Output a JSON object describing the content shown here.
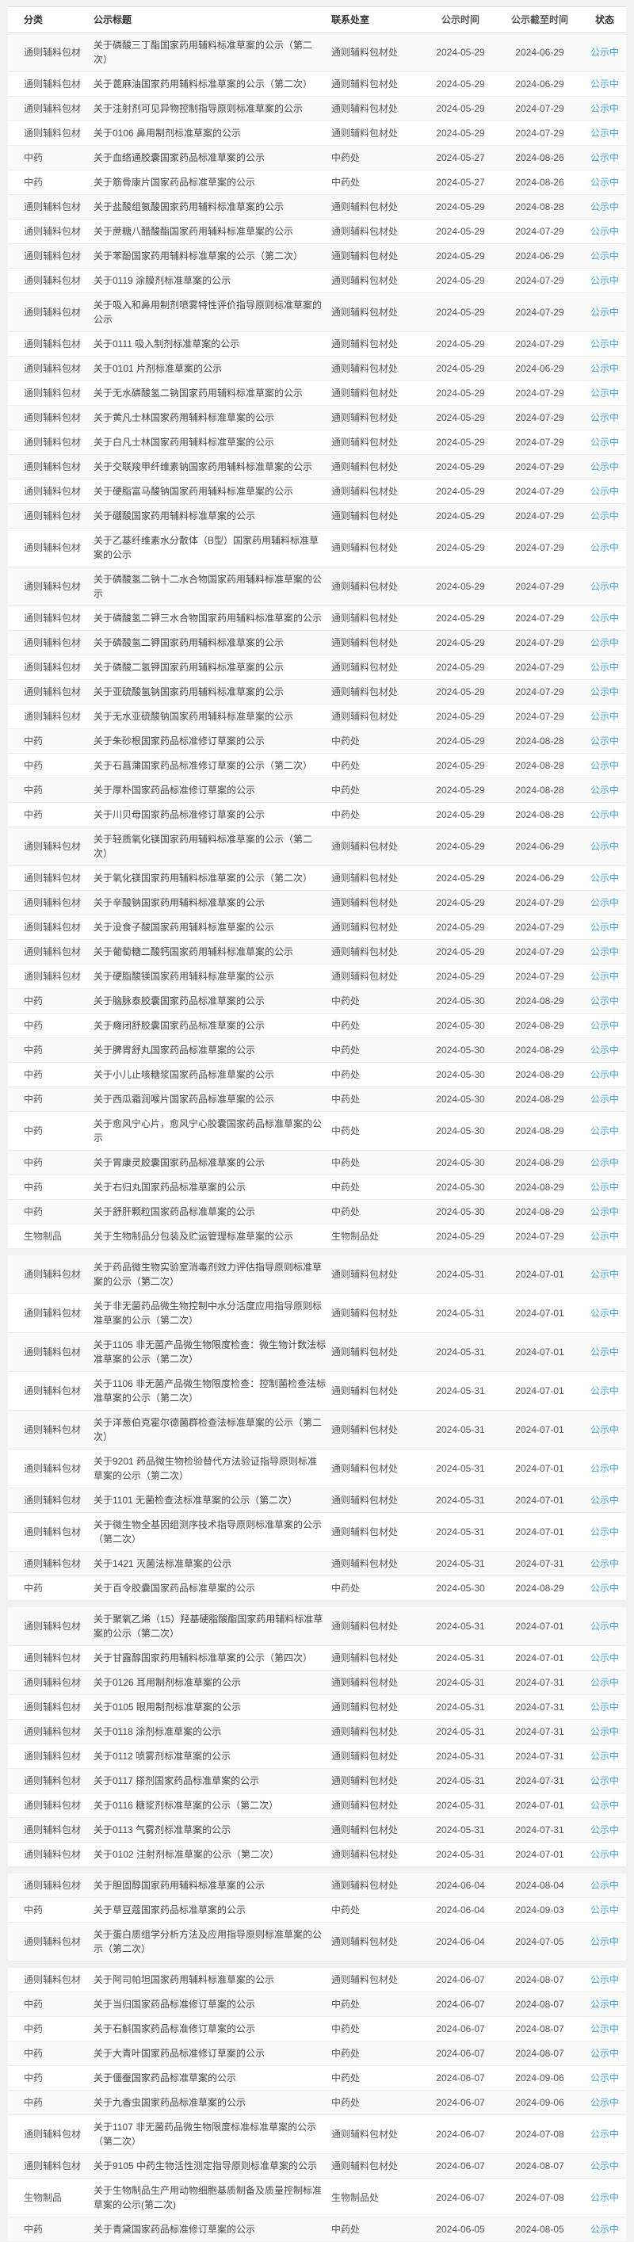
{
  "page": {
    "background": "#f1f1f1",
    "accent_blue": "#3f9fdb"
  },
  "table": {
    "columns": [
      "分类",
      "公示标题",
      "联系处室",
      "公示时间",
      "公示截至时间",
      "状态"
    ],
    "rows": [
      {
        "category": "通则辅料包材",
        "title": "关于磷酸三丁酯国家药用辅料标准草案的公示（第二次）",
        "department": "通则辅料包材处",
        "publish_date": "2024-05-29",
        "deadline": "2024-06-29",
        "status": "公示中"
      },
      {
        "category": "通则辅料包材",
        "title": "关于蓖麻油国家药用辅料标准草案的公示（第二次）",
        "department": "通则辅料包材处",
        "publish_date": "2024-05-29",
        "deadline": "2024-06-29",
        "status": "公示中"
      },
      {
        "category": "通则辅料包材",
        "title": "关于注射剂可见异物控制指导原则标准草案的公示",
        "department": "通则辅料包材处",
        "publish_date": "2024-05-29",
        "deadline": "2024-07-29",
        "status": "公示中"
      },
      {
        "category": "通则辅料包材",
        "title": "关于0106 鼻用制剂标准草案的公示",
        "department": "通则辅料包材处",
        "publish_date": "2024-05-29",
        "deadline": "2024-07-29",
        "status": "公示中"
      },
      {
        "category": "中药",
        "title": "关于血络通胶囊国家药品标准草案的公示",
        "department": "中药处",
        "publish_date": "2024-05-27",
        "deadline": "2024-08-26",
        "status": "公示中"
      },
      {
        "category": "中药",
        "title": "关于筋骨康片国家药品标准草案的公示",
        "department": "中药处",
        "publish_date": "2024-05-27",
        "deadline": "2024-08-26",
        "status": "公示中"
      },
      {
        "category": "通则辅料包材",
        "title": "关于盐酸组氨酸国家药用辅料标准草案的公示",
        "department": "通则辅料包材处",
        "publish_date": "2024-05-29",
        "deadline": "2024-08-28",
        "status": "公示中"
      },
      {
        "category": "通则辅料包材",
        "title": "关于蔗糖八醋酸酯国家药用辅料标准草案的公示",
        "department": "通则辅料包材处",
        "publish_date": "2024-05-29",
        "deadline": "2024-07-29",
        "status": "公示中"
      },
      {
        "category": "通则辅料包材",
        "title": "关于苯酚国家药用辅料标准草案的公示（第二次）",
        "department": "通则辅料包材处",
        "publish_date": "2024-05-29",
        "deadline": "2024-06-29",
        "status": "公示中"
      },
      {
        "category": "通则辅料包材",
        "title": "关于0119 涂膜剂标准草案的公示",
        "department": "通则辅料包材处",
        "publish_date": "2024-05-29",
        "deadline": "2024-07-29",
        "status": "公示中"
      },
      {
        "category": "通则辅料包材",
        "title": "关于吸入和鼻用制剂喷雾特性评价指导原则标准草案的公示",
        "department": "通则辅料包材处",
        "publish_date": "2024-05-29",
        "deadline": "2024-07-29",
        "status": "公示中"
      },
      {
        "category": "通则辅料包材",
        "title": "关于0111 吸入制剂标准草案的公示",
        "department": "通则辅料包材处",
        "publish_date": "2024-05-29",
        "deadline": "2024-07-29",
        "status": "公示中"
      },
      {
        "category": "通则辅料包材",
        "title": "关于0101 片剂标准草案的公示",
        "department": "通则辅料包材处",
        "publish_date": "2024-05-29",
        "deadline": "2024-06-29",
        "status": "公示中"
      },
      {
        "category": "通则辅料包材",
        "title": "关于无水磷酸氢二钠国家药用辅料标准草案的公示",
        "department": "通则辅料包材处",
        "publish_date": "2024-05-29",
        "deadline": "2024-07-29",
        "status": "公示中"
      },
      {
        "category": "通则辅料包材",
        "title": "关于黄凡士林国家药用辅料标准草案的公示",
        "department": "通则辅料包材处",
        "publish_date": "2024-05-29",
        "deadline": "2024-07-29",
        "status": "公示中"
      },
      {
        "category": "通则辅料包材",
        "title": "关于白凡士林国家药用辅料标准草案的公示",
        "department": "通则辅料包材处",
        "publish_date": "2024-05-29",
        "deadline": "2024-07-29",
        "status": "公示中"
      },
      {
        "category": "通则辅料包材",
        "title": "关于交联羧甲纤维素钠国家药用辅料标准草案的公示",
        "department": "通则辅料包材处",
        "publish_date": "2024-05-29",
        "deadline": "2024-07-29",
        "status": "公示中"
      },
      {
        "category": "通则辅料包材",
        "title": "关于硬脂富马酸钠国家药用辅料标准草案的公示",
        "department": "通则辅料包材处",
        "publish_date": "2024-05-29",
        "deadline": "2024-07-29",
        "status": "公示中"
      },
      {
        "category": "通则辅料包材",
        "title": "关于硼酸国家药用辅料标准草案的公示",
        "department": "通则辅料包材处",
        "publish_date": "2024-05-29",
        "deadline": "2024-07-29",
        "status": "公示中"
      },
      {
        "category": "通则辅料包材",
        "title": "关于乙基纤维素水分散体（B型）国家药用辅料标准草案的公示",
        "department": "通则辅料包材处",
        "publish_date": "2024-05-29",
        "deadline": "2024-07-29",
        "status": "公示中"
      },
      {
        "category": "通则辅料包材",
        "title": "关于磷酸氢二钠十二水合物国家药用辅料标准草案的公示",
        "department": "通则辅料包材处",
        "publish_date": "2024-05-29",
        "deadline": "2024-07-29",
        "status": "公示中"
      },
      {
        "category": "通则辅料包材",
        "title": "关于磷酸氢二钾三水合物国家药用辅料标准草案的公示",
        "department": "通则辅料包材处",
        "publish_date": "2024-05-29",
        "deadline": "2024-07-29",
        "status": "公示中"
      },
      {
        "category": "通则辅料包材",
        "title": "关于磷酸氢二钾国家药用辅料标准草案的公示",
        "department": "通则辅料包材处",
        "publish_date": "2024-05-29",
        "deadline": "2024-07-29",
        "status": "公示中"
      },
      {
        "category": "通则辅料包材",
        "title": "关于磷酸二氢钾国家药用辅料标准草案的公示",
        "department": "通则辅料包材处",
        "publish_date": "2024-05-29",
        "deadline": "2024-07-29",
        "status": "公示中"
      },
      {
        "category": "通则辅料包材",
        "title": "关于亚硫酸氢钠国家药用辅料标准草案的公示",
        "department": "通则辅料包材处",
        "publish_date": "2024-05-29",
        "deadline": "2024-07-29",
        "status": "公示中"
      },
      {
        "category": "通则辅料包材",
        "title": "关于无水亚硫酸钠国家药用辅料标准草案的公示",
        "department": "通则辅料包材处",
        "publish_date": "2024-05-29",
        "deadline": "2024-07-29",
        "status": "公示中"
      },
      {
        "category": "中药",
        "title": "关于朱砂根国家药品标准修订草案的公示",
        "department": "中药处",
        "publish_date": "2024-05-29",
        "deadline": "2024-08-28",
        "status": "公示中"
      },
      {
        "category": "中药",
        "title": "关于石菖蒲国家药品标准修订草案的公示（第二次）",
        "department": "中药处",
        "publish_date": "2024-05-29",
        "deadline": "2024-08-28",
        "status": "公示中"
      },
      {
        "category": "中药",
        "title": "关于厚朴国家药品标准修订草案的公示",
        "department": "中药处",
        "publish_date": "2024-05-29",
        "deadline": "2024-08-28",
        "status": "公示中"
      },
      {
        "category": "中药",
        "title": "关于川贝母国家药品标准修订草案的公示",
        "department": "中药处",
        "publish_date": "2024-05-29",
        "deadline": "2024-08-28",
        "status": "公示中"
      },
      {
        "category": "通则辅料包材",
        "title": "关于轻质氧化镁国家药用辅料标准草案的公示（第二次）",
        "department": "通则辅料包材处",
        "publish_date": "2024-05-29",
        "deadline": "2024-06-29",
        "status": "公示中"
      },
      {
        "category": "通则辅料包材",
        "title": "关于氧化镁国家药用辅料标准草案的公示（第二次）",
        "department": "通则辅料包材处",
        "publish_date": "2024-05-29",
        "deadline": "2024-06-29",
        "status": "公示中"
      },
      {
        "category": "通则辅料包材",
        "title": "关于辛酸钠国家药用辅料标准草案的公示",
        "department": "通则辅料包材处",
        "publish_date": "2024-05-29",
        "deadline": "2024-07-29",
        "status": "公示中"
      },
      {
        "category": "通则辅料包材",
        "title": "关于没食子酸国家药用辅料标准草案的公示",
        "department": "通则辅料包材处",
        "publish_date": "2024-05-29",
        "deadline": "2024-07-29",
        "status": "公示中"
      },
      {
        "category": "通则辅料包材",
        "title": "关于葡萄糖二酸钙国家药用辅料标准草案的公示",
        "department": "通则辅料包材处",
        "publish_date": "2024-05-29",
        "deadline": "2024-07-29",
        "status": "公示中"
      },
      {
        "category": "通则辅料包材",
        "title": "关于硬脂酸镁国家药用辅料标准草案的公示",
        "department": "通则辅料包材处",
        "publish_date": "2024-05-29",
        "deadline": "2024-07-29",
        "status": "公示中"
      },
      {
        "category": "中药",
        "title": "关于脑脉泰胶囊国家药品标准草案的公示",
        "department": "中药处",
        "publish_date": "2024-05-30",
        "deadline": "2024-08-29",
        "status": "公示中"
      },
      {
        "category": "中药",
        "title": "关于癃闭舒胶囊国家药品标准草案的公示",
        "department": "中药处",
        "publish_date": "2024-05-30",
        "deadline": "2024-08-29",
        "status": "公示中"
      },
      {
        "category": "中药",
        "title": "关于脾胃舒丸国家药品标准草案的公示",
        "department": "中药处",
        "publish_date": "2024-05-30",
        "deadline": "2024-08-29",
        "status": "公示中"
      },
      {
        "category": "中药",
        "title": "关于小儿止咳糖浆国家药品标准草案的公示",
        "department": "中药处",
        "publish_date": "2024-05-30",
        "deadline": "2024-08-29",
        "status": "公示中"
      },
      {
        "category": "中药",
        "title": "关于西瓜霜润喉片国家药品标准草案的公示",
        "department": "中药处",
        "publish_date": "2024-05-30",
        "deadline": "2024-08-29",
        "status": "公示中"
      },
      {
        "category": "中药",
        "title": "关于愈风宁心片，愈风宁心胶囊国家药品标准草案的公示",
        "department": "中药处",
        "publish_date": "2024-05-30",
        "deadline": "2024-08-29",
        "status": "公示中"
      },
      {
        "category": "中药",
        "title": "关于胃康灵胶囊国家药品标准草案的公示",
        "department": "中药处",
        "publish_date": "2024-05-30",
        "deadline": "2024-08-29",
        "status": "公示中"
      },
      {
        "category": "中药",
        "title": "关于右归丸国家药品标准草案的公示",
        "department": "中药处",
        "publish_date": "2024-05-30",
        "deadline": "2024-08-29",
        "status": "公示中"
      },
      {
        "category": "中药",
        "title": "关于舒肝颗粒国家药品标准草案的公示",
        "department": "中药处",
        "publish_date": "2024-05-30",
        "deadline": "2024-08-29",
        "status": "公示中"
      },
      {
        "category": "生物制品",
        "title": "关于生物制品分包装及贮运管理标准草案的公示",
        "department": "生物制品处",
        "publish_date": "2024-05-29",
        "deadline": "2024-07-29",
        "status": "公示中"
      },
      {
        "category": "通则辅料包材",
        "title": "关于药品微生物实验室消毒剂效力评估指导原则标准草案的公示（第二次）",
        "department": "通则辅料包材处",
        "publish_date": "2024-05-31",
        "deadline": "2024-07-01",
        "status": "公示中",
        "group_break": true
      },
      {
        "category": "通则辅料包材",
        "title": "关于非无菌药品微生物控制中水分活度应用指导原则标准草案的公示（第二次）",
        "department": "通则辅料包材处",
        "publish_date": "2024-05-31",
        "deadline": "2024-07-01",
        "status": "公示中"
      },
      {
        "category": "通则辅料包材",
        "title": "关于1105 非无菌产品微生物限度检查：微生物计数法标准草案的公示（第二次）",
        "department": "通则辅料包材处",
        "publish_date": "2024-05-31",
        "deadline": "2024-07-01",
        "status": "公示中"
      },
      {
        "category": "通则辅料包材",
        "title": "关于1106 非无菌产品微生物限度检查：控制菌检查法标准草案的公示（第二次）",
        "department": "通则辅料包材处",
        "publish_date": "2024-05-31",
        "deadline": "2024-07-01",
        "status": "公示中"
      },
      {
        "category": "通则辅料包材",
        "title": "关于洋葱伯克霍尔德菌群检查法标准草案的公示（第二次）",
        "department": "通则辅料包材处",
        "publish_date": "2024-05-31",
        "deadline": "2024-07-01",
        "status": "公示中"
      },
      {
        "category": "通则辅料包材",
        "title": "关于9201 药品微生物检验替代方法验证指导原则标准草案的公示（第二次）",
        "department": "通则辅料包材处",
        "publish_date": "2024-05-31",
        "deadline": "2024-07-01",
        "status": "公示中"
      },
      {
        "category": "通则辅料包材",
        "title": "关于1101 无菌检查法标准草案的公示（第二次）",
        "department": "通则辅料包材处",
        "publish_date": "2024-05-31",
        "deadline": "2024-07-01",
        "status": "公示中"
      },
      {
        "category": "通则辅料包材",
        "title": "关于微生物全基因组测序技术指导原则标准草案的公示（第二次）",
        "department": "通则辅料包材处",
        "publish_date": "2024-05-31",
        "deadline": "2024-07-01",
        "status": "公示中"
      },
      {
        "category": "通则辅料包材",
        "title": "关于1421 灭菌法标准草案的公示",
        "department": "通则辅料包材处",
        "publish_date": "2024-05-31",
        "deadline": "2024-07-31",
        "status": "公示中"
      },
      {
        "category": "中药",
        "title": "关于百令胶囊国家药品标准草案的公示",
        "department": "中药处",
        "publish_date": "2024-05-30",
        "deadline": "2024-08-29",
        "status": "公示中"
      },
      {
        "category": "通则辅料包材",
        "title": "关于聚氧乙烯（15）羟基硬脂酸酯国家药用辅料标准草案的公示（第二次）",
        "department": "通则辅料包材处",
        "publish_date": "2024-05-31",
        "deadline": "2024-07-01",
        "status": "公示中",
        "group_break": true
      },
      {
        "category": "通则辅料包材",
        "title": "关于甘露醇国家药用辅料标准草案的公示（第四次）",
        "department": "通则辅料包材处",
        "publish_date": "2024-05-31",
        "deadline": "2024-07-01",
        "status": "公示中"
      },
      {
        "category": "通则辅料包材",
        "title": "关于0126 耳用制剂标准草案的公示",
        "department": "通则辅料包材处",
        "publish_date": "2024-05-31",
        "deadline": "2024-07-31",
        "status": "公示中"
      },
      {
        "category": "通则辅料包材",
        "title": "关于0105 眼用制剂标准草案的公示",
        "department": "通则辅料包材处",
        "publish_date": "2024-05-31",
        "deadline": "2024-07-31",
        "status": "公示中"
      },
      {
        "category": "通则辅料包材",
        "title": "关于0118 涂剂标准草案的公示",
        "department": "通则辅料包材处",
        "publish_date": "2024-05-31",
        "deadline": "2024-07-31",
        "status": "公示中"
      },
      {
        "category": "通则辅料包材",
        "title": "关于0112 喷雾剂标准草案的公示",
        "department": "通则辅料包材处",
        "publish_date": "2024-05-31",
        "deadline": "2024-07-31",
        "status": "公示中"
      },
      {
        "category": "通则辅料包材",
        "title": "关于0117 搽剂国家药品标准草案的公示",
        "department": "通则辅料包材处",
        "publish_date": "2024-05-31",
        "deadline": "2024-07-31",
        "status": "公示中"
      },
      {
        "category": "通则辅料包材",
        "title": "关于0116 糖浆剂标准草案的公示（第二次）",
        "department": "通则辅料包材处",
        "publish_date": "2024-05-31",
        "deadline": "2024-07-01",
        "status": "公示中"
      },
      {
        "category": "通则辅料包材",
        "title": "关于0113 气雾剂标准草案的公示",
        "department": "通则辅料包材处",
        "publish_date": "2024-05-31",
        "deadline": "2024-07-31",
        "status": "公示中"
      },
      {
        "category": "通则辅料包材",
        "title": "关于0102 注射剂标准草案的公示（第二次）",
        "department": "通则辅料包材处",
        "publish_date": "2024-05-31",
        "deadline": "2024-07-01",
        "status": "公示中"
      },
      {
        "category": "通则辅料包材",
        "title": "关于胆固醇国家药用辅料标准草案的公示",
        "department": "通则辅料包材处",
        "publish_date": "2024-06-04",
        "deadline": "2024-08-04",
        "status": "公示中",
        "group_break": true
      },
      {
        "category": "中药",
        "title": "关于草豆蔻国家药品标准草案的公示",
        "department": "中药处",
        "publish_date": "2024-06-04",
        "deadline": "2024-09-03",
        "status": "公示中"
      },
      {
        "category": "通则辅料包材",
        "title": "关于蛋白质组学分析方法及应用指导原则标准草案的公示（第二次）",
        "department": "通则辅料包材处",
        "publish_date": "2024-06-04",
        "deadline": "2024-07-05",
        "status": "公示中"
      },
      {
        "category": "通则辅料包材",
        "title": "关于阿司帕坦国家药用辅料标准草案的公示",
        "department": "通则辅料包材处",
        "publish_date": "2024-06-07",
        "deadline": "2024-08-07",
        "status": "公示中",
        "group_break": true
      },
      {
        "category": "中药",
        "title": "关于当归国家药品标准修订草案的公示",
        "department": "中药处",
        "publish_date": "2024-06-07",
        "deadline": "2024-08-07",
        "status": "公示中"
      },
      {
        "category": "中药",
        "title": "关于石斛国家药品标准修订草案的公示",
        "department": "中药处",
        "publish_date": "2024-06-07",
        "deadline": "2024-08-07",
        "status": "公示中"
      },
      {
        "category": "中药",
        "title": "关于大青叶国家药品标准修订草案的公示",
        "department": "中药处",
        "publish_date": "2024-06-07",
        "deadline": "2024-08-07",
        "status": "公示中"
      },
      {
        "category": "中药",
        "title": "关于僵蚕国家药品标准草案的公示",
        "department": "中药处",
        "publish_date": "2024-06-07",
        "deadline": "2024-09-06",
        "status": "公示中"
      },
      {
        "category": "中药",
        "title": "关于九香虫国家药品标准草案的公示",
        "department": "中药处",
        "publish_date": "2024-06-07",
        "deadline": "2024-09-06",
        "status": "公示中"
      },
      {
        "category": "通则辅料包材",
        "title": "关于1107 非无菌药品微生物限度标准标准草案的公示（第二次）",
        "department": "通则辅料包材处",
        "publish_date": "2024-06-07",
        "deadline": "2024-07-08",
        "status": "公示中"
      },
      {
        "category": "通则辅料包材",
        "title": "关于9105 中药生物活性测定指导原则标准草案的公示",
        "department": "通则辅料包材处",
        "publish_date": "2024-06-07",
        "deadline": "2024-08-07",
        "status": "公示中"
      },
      {
        "category": "生物制品",
        "title": "关于生物制品生产用动物细胞基质制备及质量控制标准草案的公示(第二次)",
        "department": "生物制品处",
        "publish_date": "2024-06-07",
        "deadline": "2024-07-08",
        "status": "公示中"
      },
      {
        "category": "中药",
        "title": "关于青黛国家药品标准修订草案的公示",
        "department": "中药处",
        "publish_date": "2024-06-05",
        "deadline": "2024-08-05",
        "status": "公示中"
      }
    ]
  }
}
